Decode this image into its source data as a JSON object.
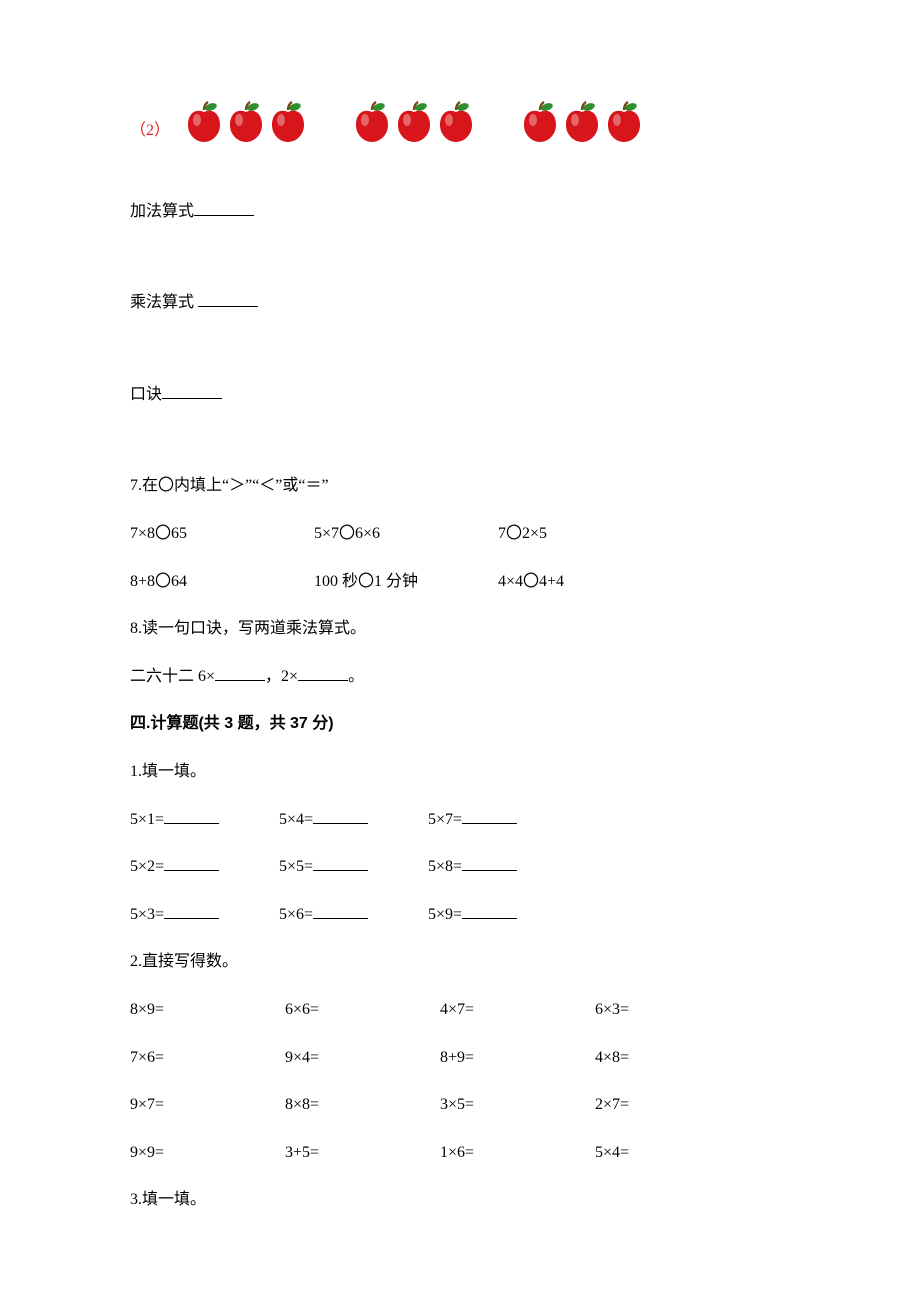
{
  "q2": {
    "label": "（2）",
    "label_color": "#ed1c24",
    "groups": 3,
    "per_group": 3,
    "apple_color": "#d7151a",
    "leaf_color": "#2f8f2f",
    "stem_color": "#7a4a1e"
  },
  "lines": {
    "addition": "加法算式",
    "multiplication": "乘法算式",
    "koujue": "口诀"
  },
  "q7": {
    "title": "7.在〇内填上“＞”“＜”或“＝”",
    "row1": [
      "7×8〇65",
      "5×7〇6×6",
      "7〇2×5"
    ],
    "row2": [
      "8+8〇64",
      "100 秒〇1 分钟",
      "4×4〇4+4"
    ]
  },
  "q8": {
    "title": "8.读一句口诀，写两道乘法算式。",
    "line": "二六十二 6×",
    "mid": "，2×",
    "end": "。"
  },
  "section4": "四.计算题(共 3 题，共 37 分)",
  "s4q1": {
    "title": "1.填一填。",
    "rows": [
      [
        "5×1=",
        "5×4=",
        "5×7="
      ],
      [
        "5×2=",
        "5×5=",
        "5×8="
      ],
      [
        "5×3=",
        "5×6=",
        "5×9="
      ]
    ]
  },
  "s4q2": {
    "title": "2.直接写得数。",
    "rows": [
      [
        "8×9=",
        "6×6=",
        "4×7=",
        "6×3="
      ],
      [
        "7×6=",
        "9×4=",
        "8+9=",
        " 4×8="
      ],
      [
        "9×7=",
        "8×8=",
        "3×5=",
        "2×7="
      ],
      [
        "9×9=",
        "3+5=",
        "1×6=",
        "5×4="
      ]
    ]
  },
  "s4q3": {
    "title": "3.填一填。"
  }
}
